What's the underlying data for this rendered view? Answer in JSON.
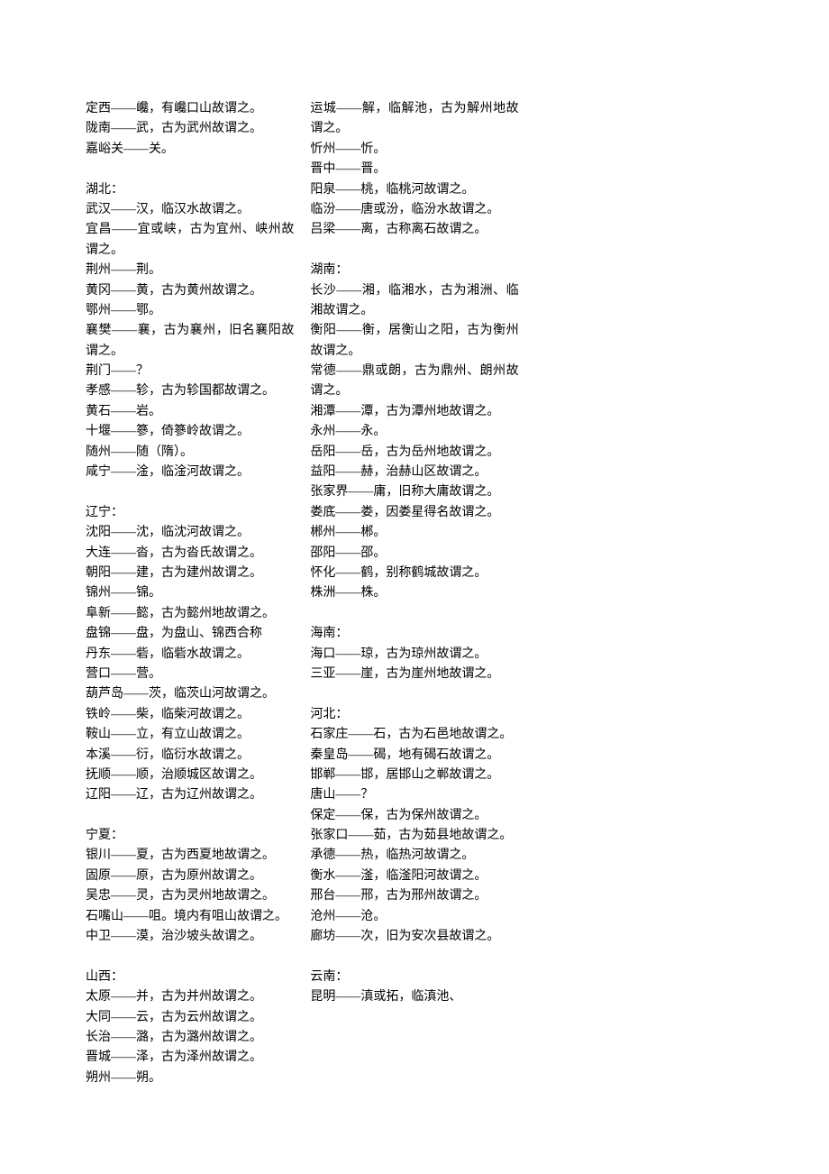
{
  "font_family": "SimSun",
  "font_size_pt": 10.5,
  "text_color": "#000000",
  "background_color": "#ffffff",
  "columns": 3,
  "entries": [
    {
      "text": "定西——巉，有巉口山故谓之。"
    },
    {
      "text": "陇南——武，古为武州故谓之。"
    },
    {
      "text": "嘉峪关——关。"
    },
    {
      "blank": true
    },
    {
      "text": "湖北：",
      "header": true
    },
    {
      "text": "武汉——汉，临汉水故谓之。"
    },
    {
      "text": "宜昌——宜或峡，古为宜州、峡州故谓之。"
    },
    {
      "text": "荆州——荆。"
    },
    {
      "text": "黄冈——黄，古为黄州故谓之。"
    },
    {
      "text": "鄂州——鄂。"
    },
    {
      "text": "襄樊——襄，古为襄州，旧名襄阳故谓之。"
    },
    {
      "text": "荆门——？"
    },
    {
      "text": "孝感——轸，古为轸国都故谓之。"
    },
    {
      "text": "黄石——岩。"
    },
    {
      "text": "十堰——篸，倚篸岭故谓之。"
    },
    {
      "text": "随州——随（隋）。"
    },
    {
      "text": "咸宁——淦，临淦河故谓之。"
    },
    {
      "blank": true
    },
    {
      "text": "辽宁：",
      "header": true
    },
    {
      "text": "沈阳——沈，临沈河故谓之。"
    },
    {
      "text": "大连——沓，古为沓氏故谓之。"
    },
    {
      "text": "朝阳——建，古为建州故谓之。"
    },
    {
      "text": "锦州——锦。"
    },
    {
      "text": "阜新——懿，古为懿州地故谓之。"
    },
    {
      "text": "盘锦——盘，为盘山、锦西合称"
    },
    {
      "text": "丹东——砦，临砦水故谓之。"
    },
    {
      "text": "营口——营。"
    },
    {
      "text": "葫芦岛——茨，临茨山河故谓之。"
    },
    {
      "text": "铁岭——柴，临柴河故谓之。"
    },
    {
      "text": "鞍山——立，有立山故谓之。"
    },
    {
      "text": "本溪——衍，临衍水故谓之。"
    },
    {
      "text": "抚顺——顺，治顺城区故谓之。"
    },
    {
      "text": "辽阳——辽，古为辽州故谓之。"
    },
    {
      "blank": true
    },
    {
      "text": "宁夏：",
      "header": true
    },
    {
      "text": "银川——夏，古为西夏地故谓之。"
    },
    {
      "text": "固原——原，古为原州故谓之。"
    },
    {
      "text": "吴忠——灵，古为灵州地故谓之。"
    },
    {
      "text": "石嘴山——咀。境内有咀山故谓之。"
    },
    {
      "text": "中卫——漠，治沙坡头故谓之。"
    },
    {
      "blank": true
    },
    {
      "text": "山西：",
      "header": true
    },
    {
      "text": "太原——并，古为并州故谓之。"
    },
    {
      "text": "大同——云，古为云州故谓之。"
    },
    {
      "text": "长治——潞，古为潞州故谓之。"
    },
    {
      "text": "晋城——泽，古为泽州故谓之。"
    },
    {
      "text": "朔州——朔。"
    },
    {
      "text": "运城——解，临解池，古为解州地故谓之。"
    },
    {
      "text": "忻州——忻。"
    },
    {
      "text": "晋中——晋。"
    },
    {
      "text": "阳泉——桃，临桃河故谓之。"
    },
    {
      "text": "临汾——唐或汾，临汾水故谓之。"
    },
    {
      "text": "吕梁——离，古称离石故谓之。"
    },
    {
      "blank": true
    },
    {
      "text": "湖南：",
      "header": true
    },
    {
      "text": "长沙——湘，临湘水，古为湘洲、临湘故谓之。"
    },
    {
      "text": "衡阳——衡，居衡山之阳，古为衡州故谓之。"
    },
    {
      "text": "常德——鼎或朗，古为鼎州、朗州故谓之。"
    },
    {
      "text": "湘潭——潭，古为潭州地故谓之。"
    },
    {
      "text": "永州——永。"
    },
    {
      "text": "岳阳——岳，古为岳州地故谓之。"
    },
    {
      "text": "益阳——赫，治赫山区故谓之。"
    },
    {
      "text": "张家界——庸，旧称大庸故谓之。"
    },
    {
      "text": "娄底——娄，因娄星得名故谓之。"
    },
    {
      "text": "郴州——郴。"
    },
    {
      "text": "邵阳——邵。"
    },
    {
      "text": "怀化——鹤，别称鹤城故谓之。"
    },
    {
      "text": "株洲——株。"
    },
    {
      "blank": true
    },
    {
      "text": "海南：",
      "header": true
    },
    {
      "text": "海口——琼，古为琼州故谓之。"
    },
    {
      "text": "三亚——崖，古为崖州地故谓之。"
    },
    {
      "blank": true
    },
    {
      "text": "河北：",
      "header": true
    },
    {
      "text": "石家庄——石，古为石邑地故谓之。"
    },
    {
      "text": "秦皇岛——碣，地有碣石故谓之。"
    },
    {
      "text": "邯郸——邯，居邯山之郸故谓之。"
    },
    {
      "text": "唐山——？"
    },
    {
      "text": "保定——保，古为保州故谓之。"
    },
    {
      "text": "张家口——茹，古为茹县地故谓之。"
    },
    {
      "text": "承德——热，临热河故谓之。"
    },
    {
      "text": "衡水——滏，临滏阳河故谓之。"
    },
    {
      "text": "邢台——邢，古为邢州故谓之。"
    },
    {
      "text": "沧州——沧。"
    },
    {
      "text": "廊坊——次，旧为安次县故谓之。"
    },
    {
      "blank": true
    },
    {
      "text": "云南：",
      "header": true
    },
    {
      "text": "昆明——滇或拓，临滇池、"
    }
  ]
}
